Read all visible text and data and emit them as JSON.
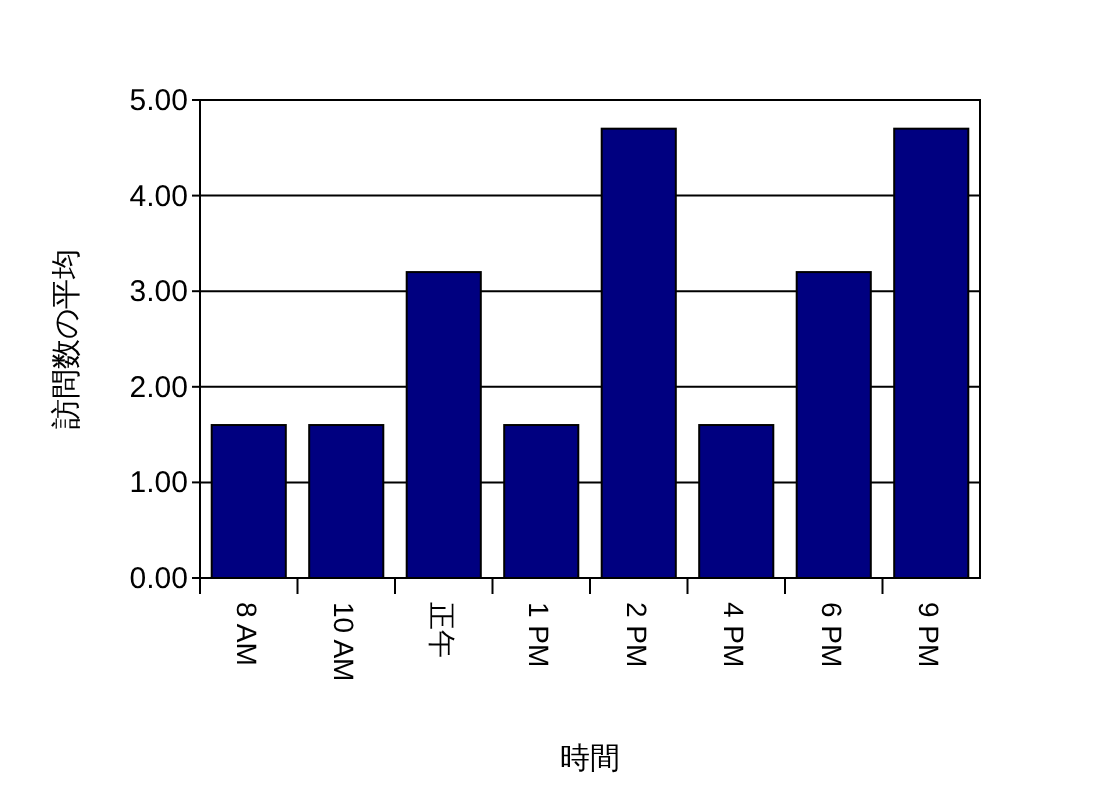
{
  "chart_data": {
    "type": "bar",
    "xlabel": "時間",
    "ylabel": "訪問数の平均",
    "categories": [
      "8 AM",
      "10 AM",
      "正午",
      "1 PM",
      "2 PM",
      "4 PM",
      "6 PM",
      "9 PM"
    ],
    "values": [
      1.6,
      1.6,
      3.2,
      1.6,
      4.7,
      1.6,
      3.2,
      4.7
    ],
    "color": "#000080",
    "ylim": [
      0,
      5
    ],
    "yticks": [
      {
        "value": 0,
        "label": "0.00"
      },
      {
        "value": 1,
        "label": "1.00"
      },
      {
        "value": 2,
        "label": "2.00"
      },
      {
        "value": 3,
        "label": "3.00"
      },
      {
        "value": 4,
        "label": "4.00"
      },
      {
        "value": 5,
        "label": "5.00"
      }
    ],
    "grid": "y"
  }
}
